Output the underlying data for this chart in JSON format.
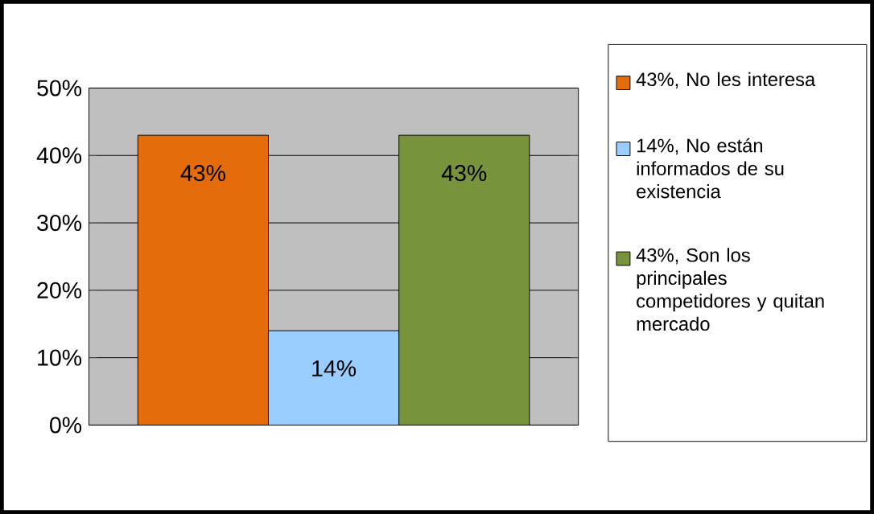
{
  "chart_data": {
    "type": "bar",
    "categories": [
      null
    ],
    "series": [
      {
        "name": "43%, No les interesa",
        "color": "#e46c0a",
        "values": [
          43
        ],
        "value_labels": [
          "43%"
        ]
      },
      {
        "name": "14%, No están informados de su existencia",
        "color": "#99ccff",
        "values": [
          14
        ],
        "value_labels": [
          "14%"
        ]
      },
      {
        "name": "43%, Son los principales competidores y quitan mercado",
        "color": "#77933c",
        "values": [
          43
        ],
        "value_labels": [
          "43%"
        ]
      }
    ],
    "ylim": [
      0,
      50
    ],
    "yticks": [
      {
        "value": 0,
        "label": "0%"
      },
      {
        "value": 10,
        "label": "10%"
      },
      {
        "value": 20,
        "label": "20%"
      },
      {
        "value": 30,
        "label": "30%"
      },
      {
        "value": 40,
        "label": "40%"
      },
      {
        "value": 50,
        "label": "50%"
      }
    ],
    "grid": "y",
    "legend": "right"
  }
}
